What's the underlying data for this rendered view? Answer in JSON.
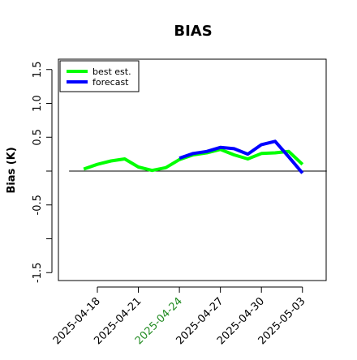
{
  "chart_data": {
    "type": "line",
    "title": "BIAS",
    "ylabel": "Bias (K)",
    "xlabel": "",
    "ylim": [
      -1.6,
      1.65
    ],
    "y_ticks": [
      -1.5,
      -1.0,
      -0.5,
      0.0,
      0.5,
      1.0,
      1.5
    ],
    "y_tick_labels": [
      "-1.5",
      "",
      "-0.5",
      "",
      "0.5",
      "1.0",
      "1.5"
    ],
    "x_tick_labels": [
      "2025-04-18",
      "2025-04-21",
      "2025-04-24",
      "2025-04-27",
      "2025-04-30",
      "2025-05-03"
    ],
    "x_tick_day_index": [
      0,
      3,
      6,
      9,
      12,
      15
    ],
    "highlight_tick_label": "2025-04-24",
    "highlight_color": "#228b22",
    "zero_line": 0.0,
    "legend": {
      "placement": "top-left",
      "entries": [
        "best est.",
        "forecast"
      ]
    },
    "series": [
      {
        "name": "best est.",
        "color": "#00ff00",
        "x": [
          -1,
          0,
          1,
          2,
          3,
          4,
          5,
          6,
          7,
          8,
          9,
          10,
          11,
          12,
          13,
          14,
          15
        ],
        "values": [
          0.03,
          0.1,
          0.15,
          0.18,
          0.06,
          0.01,
          0.05,
          0.17,
          0.24,
          0.27,
          0.32,
          0.24,
          0.18,
          0.26,
          0.27,
          0.29,
          0.1
        ]
      },
      {
        "name": "forecast",
        "color": "#0000ff",
        "x": [
          6,
          7,
          8,
          9,
          10,
          11,
          12,
          13,
          14,
          15
        ],
        "values": [
          0.19,
          0.26,
          0.29,
          0.35,
          0.33,
          0.25,
          0.39,
          0.44,
          0.21,
          -0.03
        ]
      }
    ]
  }
}
